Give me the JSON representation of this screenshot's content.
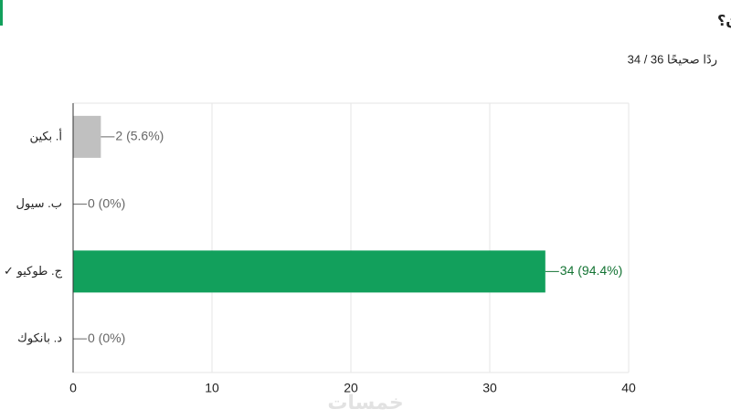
{
  "chart_data": {
    "type": "bar",
    "orientation": "horizontal",
    "title": "ما عاصمة اليابان؟",
    "subtitle": "34 / 36 ردًا صحيحًا",
    "categories": [
      "أ. بكين",
      "ب. سيول",
      "ج. طوكيو ✓",
      "د. بانكوك"
    ],
    "values": [
      2,
      0,
      34,
      0
    ],
    "value_labels": [
      "2 (5.6%)",
      "0 (0%)",
      "34 (94.4%)",
      "0 (0%)"
    ],
    "colors": [
      "#c0c0c0",
      "#c0c0c0",
      "#12a05c",
      "#c0c0c0"
    ],
    "label_colors": [
      "#666666",
      "#666666",
      "#137333",
      "#666666"
    ],
    "xlim": [
      0,
      40
    ],
    "xticks": [
      0,
      10,
      20,
      30,
      40
    ],
    "grid": true,
    "watermark": "خمسات"
  }
}
